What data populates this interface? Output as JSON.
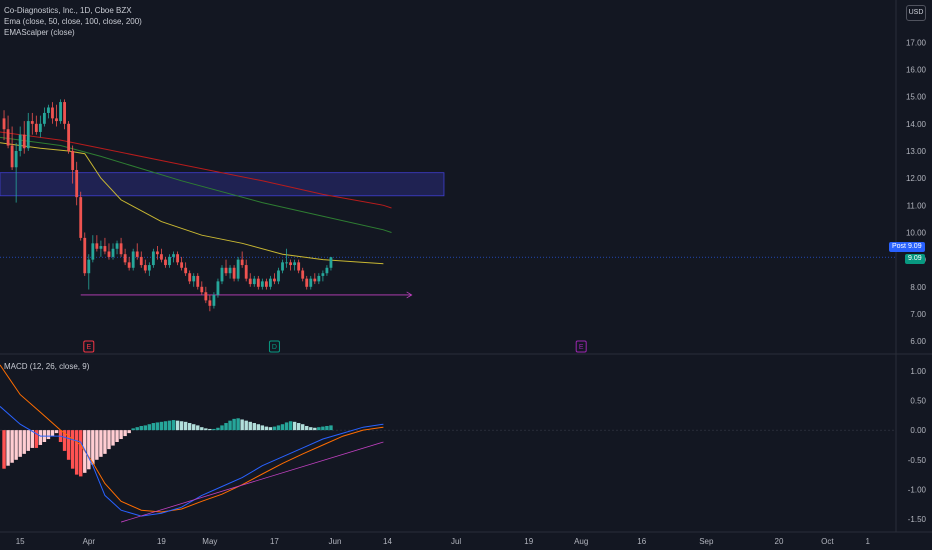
{
  "header": {
    "title": "Co-Diagnostics, Inc., 1D, Cboe BZX",
    "ema_legend": "Ema (close, 50, close, 100, close, 200)",
    "scalper_legend": "EMAScalper (close)",
    "currency": "USD"
  },
  "macd_legend": "MACD (12, 26, close, 9)",
  "price_tags": {
    "post_label": "Post",
    "post_value": "9.09",
    "last_value": "9.09"
  },
  "events": [
    {
      "label": "E",
      "color": "#f23645"
    },
    {
      "label": "D",
      "color": "#089981"
    },
    {
      "label": "E",
      "color": "#9c27b0"
    }
  ],
  "colors": {
    "up": "#26a69a",
    "down": "#ef5350",
    "ema50": "#c8b732",
    "ema100": "#2e7d32",
    "ema200": "#b71c1c",
    "macd": "#2962ff",
    "signal": "#ff6d00",
    "zone": "#3f3fd1",
    "trend": "#c040c0"
  },
  "chart_data": {
    "type": "candlestick",
    "title": "Co-Diagnostics, Inc., 1D, Cboe BZX",
    "y_ticks": [
      "17.00",
      "16.00",
      "15.00",
      "14.00",
      "13.00",
      "12.00",
      "11.00",
      "10.00",
      "9.00",
      "8.00",
      "7.00",
      "6.00"
    ],
    "ylim": [
      5.6,
      17.6
    ],
    "macd_ticks": [
      "1.00",
      "0.50",
      "0.00",
      "-0.50",
      "-1.00",
      "-1.50"
    ],
    "macd_ylim": [
      -1.65,
      1.25
    ],
    "x_ticks": [
      {
        "label": "15",
        "day": 0
      },
      {
        "label": "Apr",
        "day": 17
      },
      {
        "label": "19",
        "day": 35
      },
      {
        "label": "May",
        "day": 47
      },
      {
        "label": "17",
        "day": 63
      },
      {
        "label": "Jun",
        "day": 78
      },
      {
        "label": "14",
        "day": 91
      },
      {
        "label": "Jul",
        "day": 108
      },
      {
        "label": "19",
        "day": 126
      },
      {
        "label": "Aug",
        "day": 139
      },
      {
        "label": "16",
        "day": 154
      },
      {
        "label": "Sep",
        "day": 170
      },
      {
        "label": "20",
        "day": 188
      },
      {
        "label": "Oct",
        "day": 200
      },
      {
        "label": "1",
        "day": 210
      }
    ],
    "x_day_range": [
      -5,
      217
    ],
    "candles": [
      [
        14.2,
        14.5,
        13.4,
        13.8
      ],
      [
        13.8,
        14.3,
        13.1,
        13.2
      ],
      [
        13.2,
        13.9,
        12.3,
        12.4
      ],
      [
        12.4,
        13.3,
        11.1,
        13.0
      ],
      [
        13.0,
        13.9,
        12.8,
        13.6
      ],
      [
        13.6,
        14.1,
        12.9,
        13.1
      ],
      [
        13.1,
        14.4,
        13.0,
        14.1
      ],
      [
        14.1,
        14.4,
        13.6,
        14.0
      ],
      [
        14.0,
        14.3,
        13.6,
        13.7
      ],
      [
        13.7,
        14.3,
        13.5,
        14.0
      ],
      [
        14.0,
        14.6,
        13.9,
        14.4
      ],
      [
        14.4,
        14.7,
        14.2,
        14.6
      ],
      [
        14.6,
        14.8,
        14.0,
        14.2
      ],
      [
        14.2,
        14.7,
        13.9,
        14.1
      ],
      [
        14.1,
        14.9,
        14.0,
        14.8
      ],
      [
        14.8,
        14.9,
        13.8,
        14.0
      ],
      [
        14.0,
        14.1,
        12.9,
        13.0
      ],
      [
        13.0,
        13.2,
        11.8,
        12.3
      ],
      [
        12.3,
        12.6,
        11.0,
        11.3
      ],
      [
        11.3,
        11.5,
        9.7,
        9.8
      ],
      [
        9.8,
        10.0,
        8.4,
        8.5
      ],
      [
        8.5,
        9.2,
        7.9,
        9.0
      ],
      [
        9.0,
        9.9,
        8.9,
        9.6
      ],
      [
        9.6,
        9.9,
        9.3,
        9.4
      ],
      [
        9.4,
        9.7,
        9.1,
        9.5
      ],
      [
        9.5,
        9.8,
        9.2,
        9.3
      ],
      [
        9.3,
        9.6,
        9.0,
        9.1
      ],
      [
        9.1,
        9.6,
        9.0,
        9.4
      ],
      [
        9.4,
        9.7,
        9.2,
        9.6
      ],
      [
        9.6,
        9.8,
        9.1,
        9.2
      ],
      [
        9.2,
        9.4,
        8.8,
        8.9
      ],
      [
        8.9,
        9.1,
        8.6,
        8.7
      ],
      [
        8.7,
        9.4,
        8.6,
        9.3
      ],
      [
        9.3,
        9.6,
        9.0,
        9.1
      ],
      [
        9.1,
        9.3,
        8.7,
        8.8
      ],
      [
        8.8,
        9.0,
        8.5,
        8.6
      ],
      [
        8.6,
        8.9,
        8.4,
        8.8
      ],
      [
        8.8,
        9.4,
        8.7,
        9.3
      ],
      [
        9.3,
        9.5,
        9.0,
        9.2
      ],
      [
        9.2,
        9.4,
        8.9,
        9.0
      ],
      [
        9.0,
        9.1,
        8.7,
        8.8
      ],
      [
        8.8,
        9.2,
        8.7,
        9.1
      ],
      [
        9.1,
        9.3,
        8.9,
        9.2
      ],
      [
        9.2,
        9.3,
        8.8,
        8.9
      ],
      [
        8.9,
        9.1,
        8.6,
        8.7
      ],
      [
        8.7,
        8.9,
        8.4,
        8.5
      ],
      [
        8.5,
        8.6,
        8.1,
        8.2
      ],
      [
        8.2,
        8.5,
        8.0,
        8.4
      ],
      [
        8.4,
        8.5,
        7.9,
        8.0
      ],
      [
        8.0,
        8.2,
        7.7,
        7.8
      ],
      [
        7.8,
        8.0,
        7.4,
        7.5
      ],
      [
        7.5,
        7.7,
        7.1,
        7.3
      ],
      [
        7.3,
        7.8,
        7.2,
        7.7
      ],
      [
        7.7,
        8.3,
        7.6,
        8.2
      ],
      [
        8.2,
        8.8,
        8.1,
        8.7
      ],
      [
        8.7,
        9.0,
        8.4,
        8.5
      ],
      [
        8.5,
        8.8,
        8.3,
        8.7
      ],
      [
        8.7,
        8.8,
        8.2,
        8.3
      ],
      [
        8.3,
        9.1,
        8.2,
        9.0
      ],
      [
        9.0,
        9.3,
        8.7,
        8.8
      ],
      [
        8.8,
        9.0,
        8.2,
        8.3
      ],
      [
        8.3,
        8.5,
        8.0,
        8.1
      ],
      [
        8.1,
        8.4,
        8.0,
        8.3
      ],
      [
        8.3,
        8.4,
        7.9,
        8.0
      ],
      [
        8.0,
        8.3,
        7.9,
        8.2
      ],
      [
        8.2,
        8.3,
        7.9,
        8.0
      ],
      [
        8.0,
        8.4,
        7.9,
        8.3
      ],
      [
        8.3,
        8.5,
        8.1,
        8.2
      ],
      [
        8.2,
        8.7,
        8.1,
        8.6
      ],
      [
        8.6,
        9.0,
        8.5,
        8.9
      ],
      [
        8.9,
        9.4,
        8.7,
        8.9
      ],
      [
        8.9,
        9.0,
        8.6,
        8.8
      ],
      [
        8.8,
        9.0,
        8.6,
        8.9
      ],
      [
        8.9,
        9.0,
        8.5,
        8.6
      ],
      [
        8.6,
        8.7,
        8.2,
        8.3
      ],
      [
        8.3,
        8.4,
        7.9,
        8.0
      ],
      [
        8.0,
        8.4,
        7.9,
        8.3
      ],
      [
        8.3,
        8.5,
        8.1,
        8.2
      ],
      [
        8.2,
        8.5,
        8.1,
        8.4
      ],
      [
        8.4,
        8.6,
        8.2,
        8.5
      ],
      [
        8.5,
        8.8,
        8.4,
        8.7
      ],
      [
        8.7,
        9.1,
        8.6,
        9.09
      ]
    ],
    "ema50": [
      [
        -5,
        13.3
      ],
      [
        5,
        13.1
      ],
      [
        12,
        13.0
      ],
      [
        16,
        12.9
      ],
      [
        20,
        12.0
      ],
      [
        25,
        11.2
      ],
      [
        35,
        10.4
      ],
      [
        45,
        9.9
      ],
      [
        55,
        9.6
      ],
      [
        65,
        9.2
      ],
      [
        75,
        9.0
      ],
      [
        85,
        8.9
      ],
      [
        90,
        8.85
      ]
    ],
    "ema100": [
      [
        -5,
        13.5
      ],
      [
        10,
        13.2
      ],
      [
        20,
        12.8
      ],
      [
        40,
        11.9
      ],
      [
        60,
        11.1
      ],
      [
        75,
        10.6
      ],
      [
        90,
        10.1
      ],
      [
        92,
        10.0
      ]
    ],
    "ema200": [
      [
        -5,
        13.7
      ],
      [
        10,
        13.4
      ],
      [
        20,
        13.1
      ],
      [
        40,
        12.5
      ],
      [
        60,
        11.9
      ],
      [
        75,
        11.4
      ],
      [
        90,
        11.0
      ],
      [
        92,
        10.9
      ]
    ],
    "zone": {
      "day_start": -5,
      "day_end": 105,
      "low": 11.35,
      "high": 12.2
    },
    "support_line": {
      "day_start": 15,
      "day_end": 97,
      "value": 7.7
    },
    "macd_line": [
      [
        -5,
        0.4
      ],
      [
        0,
        0.1
      ],
      [
        5,
        -0.1
      ],
      [
        10,
        -0.1
      ],
      [
        15,
        -0.2
      ],
      [
        18,
        -0.6
      ],
      [
        21,
        -1.1
      ],
      [
        25,
        -1.35
      ],
      [
        30,
        -1.45
      ],
      [
        35,
        -1.4
      ],
      [
        40,
        -1.3
      ],
      [
        45,
        -1.1
      ],
      [
        50,
        -0.95
      ],
      [
        55,
        -0.8
      ],
      [
        60,
        -0.6
      ],
      [
        65,
        -0.45
      ],
      [
        70,
        -0.3
      ],
      [
        75,
        -0.15
      ],
      [
        80,
        -0.05
      ],
      [
        85,
        0.05
      ],
      [
        90,
        0.1
      ]
    ],
    "signal_line": [
      [
        -5,
        1.1
      ],
      [
        0,
        0.6
      ],
      [
        5,
        0.3
      ],
      [
        10,
        0.0
      ],
      [
        15,
        -0.25
      ],
      [
        18,
        -0.55
      ],
      [
        21,
        -0.9
      ],
      [
        25,
        -1.2
      ],
      [
        30,
        -1.35
      ],
      [
        35,
        -1.38
      ],
      [
        40,
        -1.33
      ],
      [
        45,
        -1.2
      ],
      [
        50,
        -1.08
      ],
      [
        55,
        -0.92
      ],
      [
        60,
        -0.74
      ],
      [
        65,
        -0.56
      ],
      [
        70,
        -0.4
      ],
      [
        75,
        -0.25
      ],
      [
        80,
        -0.1
      ],
      [
        85,
        0.0
      ],
      [
        90,
        0.05
      ]
    ],
    "macd_trend": {
      "day_start": 25,
      "day_end": 90,
      "start": -1.55,
      "end": -0.2
    },
    "histogram": [
      -0.65,
      -0.6,
      -0.55,
      -0.5,
      -0.45,
      -0.4,
      -0.35,
      -0.3,
      -0.3,
      -0.25,
      -0.2,
      -0.15,
      -0.1,
      -0.05,
      -0.2,
      -0.35,
      -0.5,
      -0.65,
      -0.75,
      -0.78,
      -0.72,
      -0.66,
      -0.58,
      -0.5,
      -0.45,
      -0.4,
      -0.32,
      -0.26,
      -0.2,
      -0.15,
      -0.1,
      -0.05,
      0.03,
      0.05,
      0.07,
      0.08,
      0.1,
      0.12,
      0.13,
      0.14,
      0.15,
      0.16,
      0.17,
      0.16,
      0.15,
      0.14,
      0.12,
      0.1,
      0.08,
      0.05,
      0.03,
      0.02,
      0.02,
      0.04,
      0.08,
      0.12,
      0.16,
      0.19,
      0.2,
      0.18,
      0.16,
      0.14,
      0.12,
      0.1,
      0.08,
      0.06,
      0.05,
      0.06,
      0.08,
      0.1,
      0.13,
      0.15,
      0.14,
      0.12,
      0.1,
      0.07,
      0.05,
      0.04,
      0.05,
      0.06,
      0.07,
      0.08
    ]
  }
}
